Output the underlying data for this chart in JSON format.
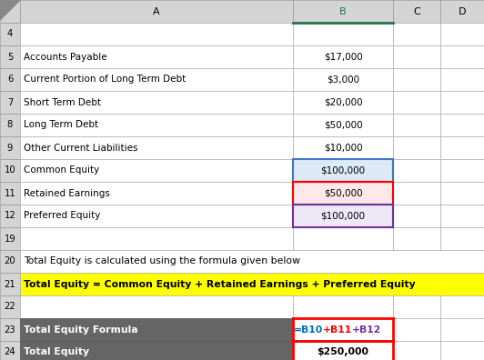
{
  "col_header_bg": "#d4d4d4",
  "cell_bg": "#ffffff",
  "dark_row_bg": "#656565",
  "dark_row_text": "#ffffff",
  "yellow_bg": "#ffff00",
  "pink_bg": "#ffe8e8",
  "light_blue_bg": "#dce9f7",
  "light_purple_bg": "#ede8f5",
  "formula_row_label": "Total Equity Formula",
  "formula_parts": [
    {
      "text": "=B10",
      "color": "#0070c0"
    },
    {
      "text": "+B11",
      "color": "#ff0000"
    },
    {
      "text": "+B12",
      "color": "#7030a0"
    }
  ],
  "total_label": "Total Equity",
  "total_value": "$250,000",
  "rows": [
    {
      "num": "4",
      "label": "",
      "value": "",
      "span": false,
      "yellow": false,
      "highlight": null
    },
    {
      "num": "5",
      "label": "Accounts Payable",
      "value": "$17,000",
      "span": false,
      "yellow": false,
      "highlight": null
    },
    {
      "num": "6",
      "label": "Current Portion of Long Term Debt",
      "value": "$3,000",
      "span": false,
      "yellow": false,
      "highlight": null
    },
    {
      "num": "7",
      "label": "Short Term Debt",
      "value": "$20,000",
      "span": false,
      "yellow": false,
      "highlight": null
    },
    {
      "num": "8",
      "label": "Long Term Debt",
      "value": "$50,000",
      "span": false,
      "yellow": false,
      "highlight": null
    },
    {
      "num": "9",
      "label": "Other Current Liabilities",
      "value": "$10,000",
      "span": false,
      "yellow": false,
      "highlight": null
    },
    {
      "num": "10",
      "label": "Common Equity",
      "value": "$100,000",
      "span": false,
      "yellow": false,
      "highlight": "blue"
    },
    {
      "num": "11",
      "label": "Retained Earnings",
      "value": "$50,000",
      "span": false,
      "yellow": false,
      "highlight": "red"
    },
    {
      "num": "12",
      "label": "Preferred Equity",
      "value": "$100,000",
      "span": false,
      "yellow": false,
      "highlight": "purple"
    },
    {
      "num": "19",
      "label": "",
      "value": "",
      "span": false,
      "yellow": false,
      "highlight": null
    },
    {
      "num": "20",
      "label": "Total Equity is calculated using the formula given below",
      "value": "",
      "span": true,
      "yellow": false,
      "highlight": null
    },
    {
      "num": "21",
      "label": "Total Equity = Common Equity + Retained Earnings + Preferred Equity",
      "value": "",
      "span": true,
      "yellow": true,
      "highlight": null
    },
    {
      "num": "22",
      "label": "",
      "value": "",
      "span": false,
      "yellow": false,
      "highlight": null
    }
  ],
  "highlight_colors": {
    "blue": {
      "bg": "#dce9f7",
      "top": "#4472c4",
      "bottom": "#ff0000",
      "sides": "#4472c4"
    },
    "red": {
      "bg": "#ffe8e8",
      "top": "#ff0000",
      "bottom": "#7030a0",
      "sides": "#ff0000"
    },
    "purple": {
      "bg": "#ede8f5",
      "top": "#7030a0",
      "bottom": "#7030a0",
      "sides": "#7030a0"
    }
  }
}
